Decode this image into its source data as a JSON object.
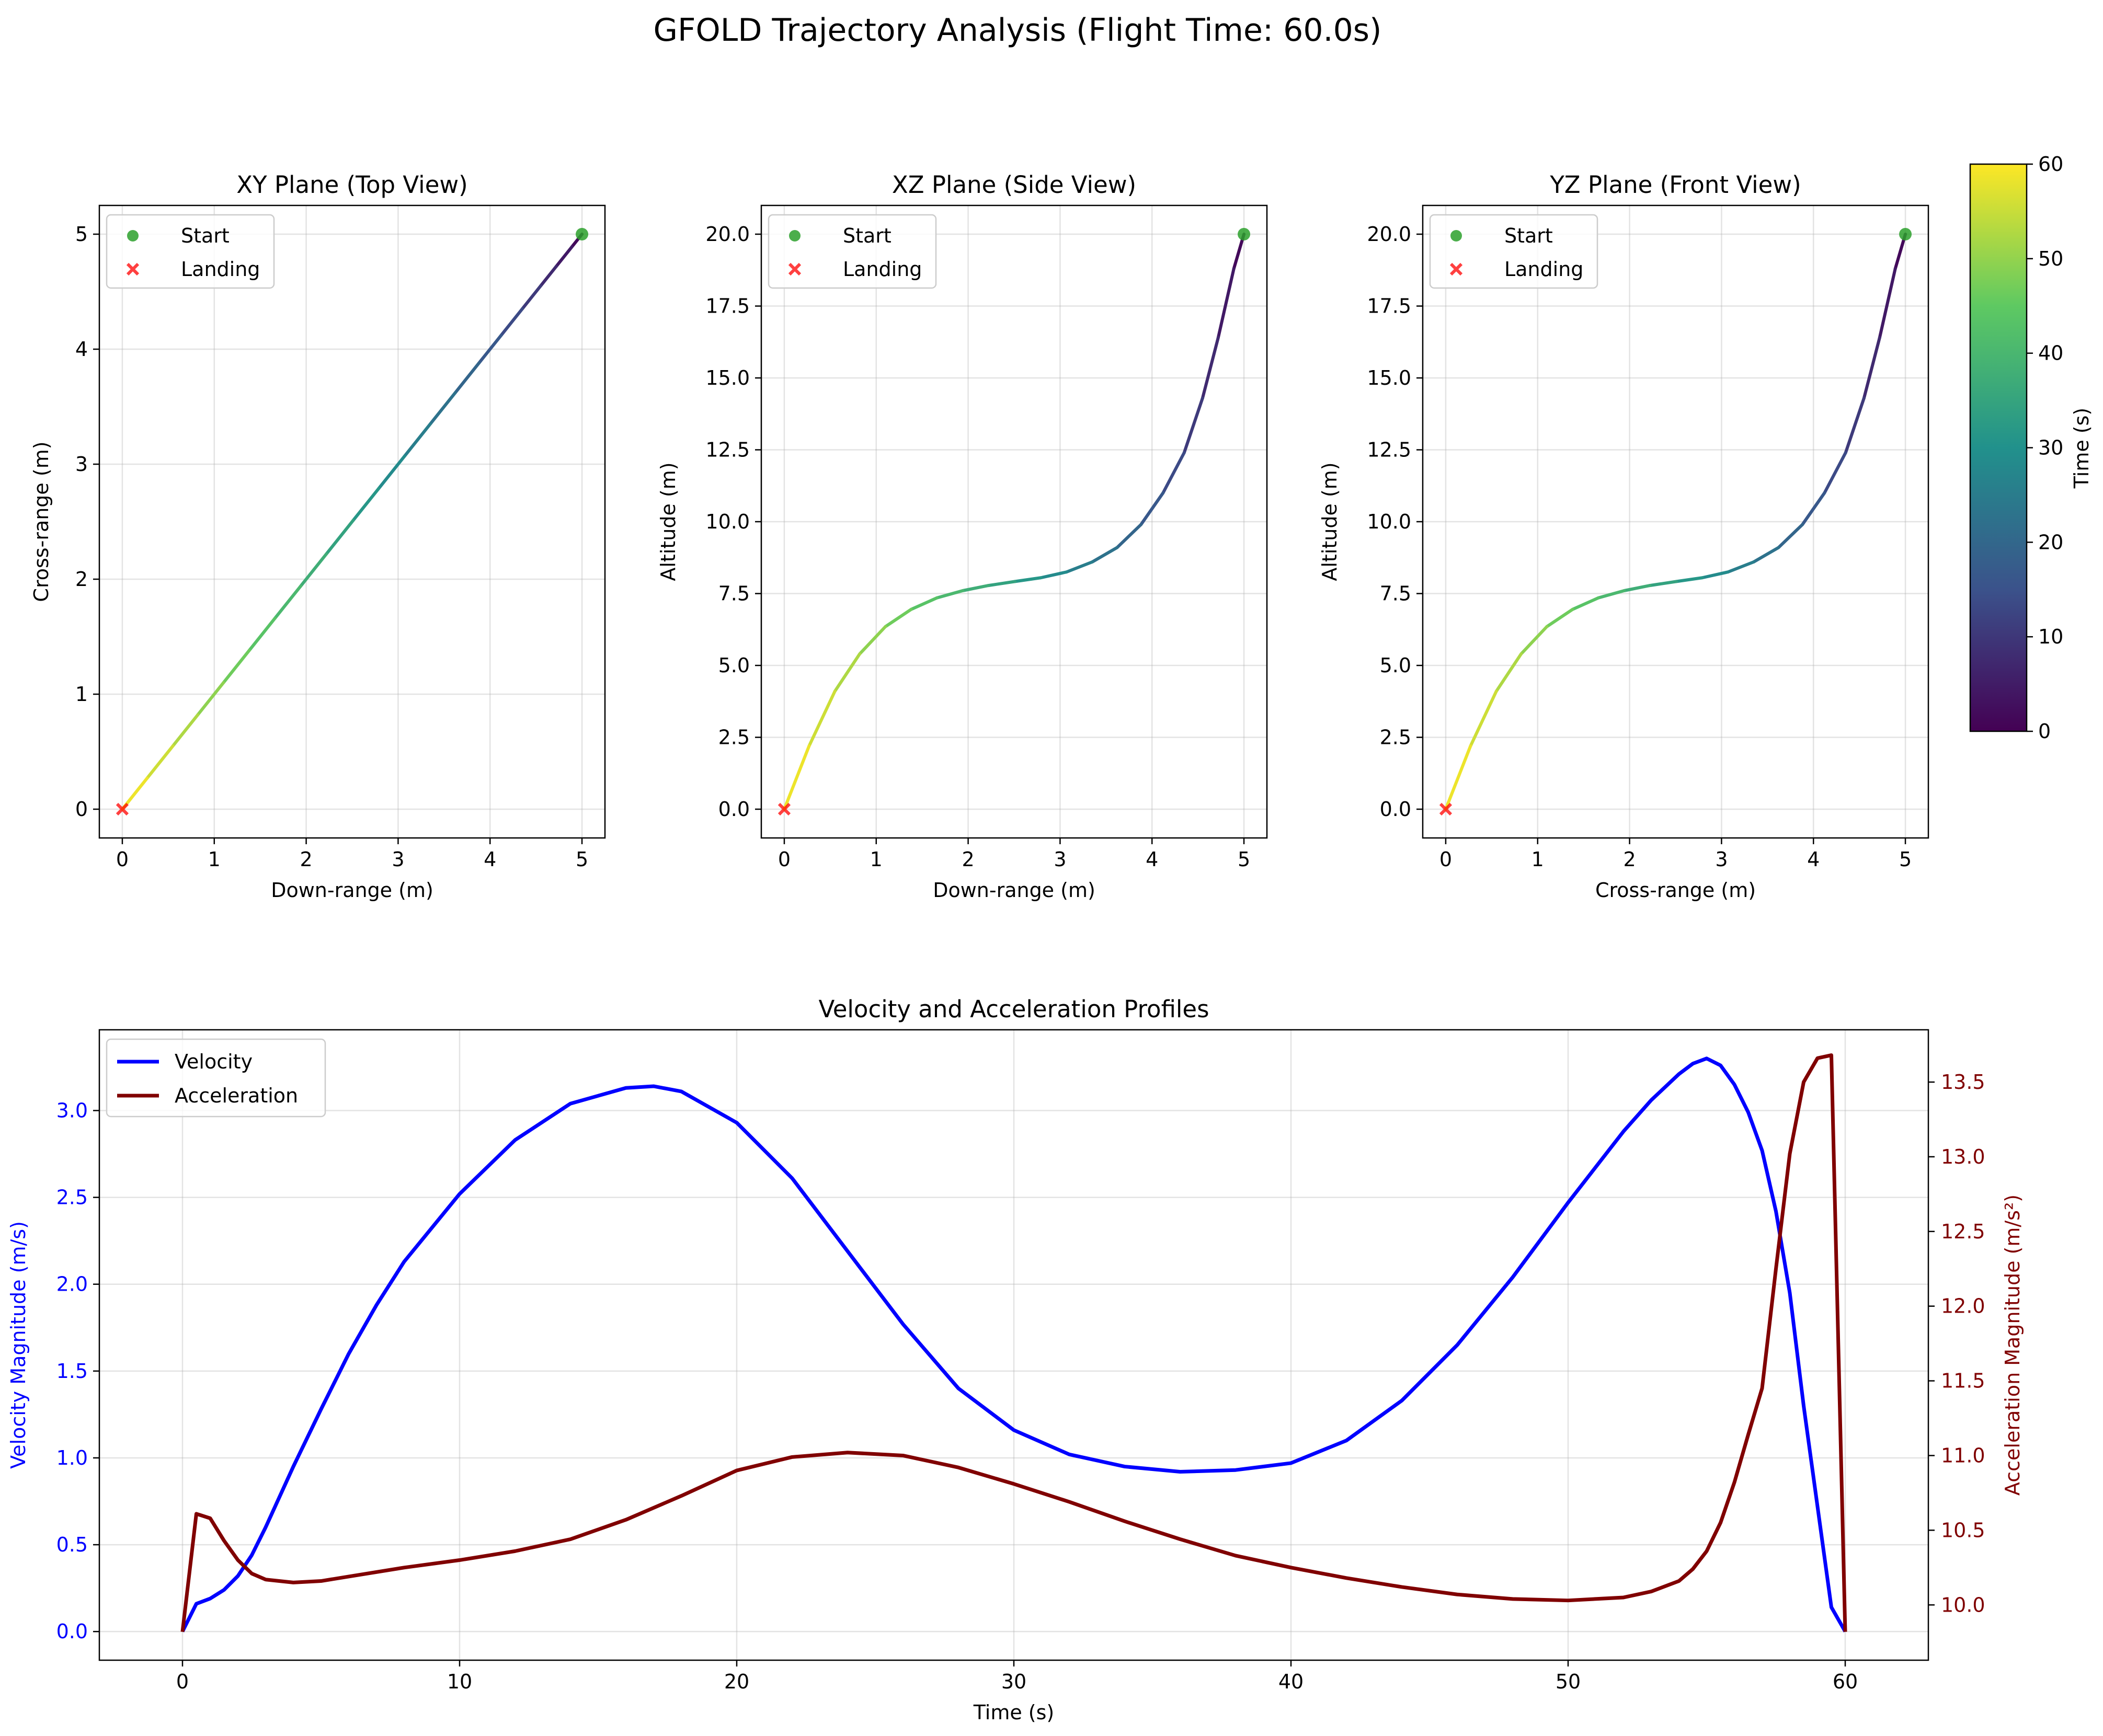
{
  "figure": {
    "suptitle": "GFOLD Trajectory Analysis (Flight Time: 60.0s)"
  },
  "colors": {
    "start": "#2ca02c",
    "landing": "#ff0000",
    "velocity": "#0000ff",
    "acceleration": "#800000",
    "grid": "#b0b0b0",
    "colormap": [
      "#440154",
      "#3b528b",
      "#21918c",
      "#5ec962",
      "#fde725"
    ]
  },
  "chart_data": [
    {
      "type": "line",
      "title": "XY Plane (Top View)",
      "xlabel": "Down-range (m)",
      "ylabel": "Cross-range (m)",
      "xlim": [
        -0.25,
        5.25
      ],
      "ylim": [
        -0.25,
        5.25
      ],
      "xticks": [
        0,
        1,
        2,
        3,
        4,
        5
      ],
      "yticks": [
        0,
        1,
        2,
        3,
        4,
        5
      ],
      "grid": true,
      "color_by": "time",
      "legend": {
        "position": "top-left",
        "entries": [
          "Start",
          "Landing"
        ]
      },
      "series": [
        {
          "t": [
            0,
            3,
            6,
            9,
            12,
            15,
            18,
            21,
            24,
            27,
            30,
            33,
            36,
            39,
            42,
            45,
            48,
            51,
            54,
            57,
            60
          ],
          "x": [
            5.0,
            4.89,
            4.72,
            4.55,
            4.35,
            4.12,
            3.88,
            3.62,
            3.35,
            3.07,
            2.79,
            2.51,
            2.22,
            1.94,
            1.66,
            1.38,
            1.1,
            0.82,
            0.55,
            0.27,
            0.0
          ],
          "y": [
            5.0,
            4.89,
            4.72,
            4.55,
            4.35,
            4.12,
            3.88,
            3.62,
            3.35,
            3.07,
            2.79,
            2.51,
            2.22,
            1.94,
            1.66,
            1.38,
            1.1,
            0.82,
            0.55,
            0.27,
            0.0
          ]
        }
      ],
      "markers": {
        "start": [
          5,
          5
        ],
        "landing": [
          0,
          0
        ]
      }
    },
    {
      "type": "line",
      "title": "XZ Plane (Side View)",
      "xlabel": "Down-range (m)",
      "ylabel": "Altitude (m)",
      "xlim": [
        -0.25,
        5.25
      ],
      "ylim": [
        -1.0,
        21.0
      ],
      "xticks": [
        0,
        1,
        2,
        3,
        4,
        5
      ],
      "yticks": [
        0.0,
        2.5,
        5.0,
        7.5,
        10.0,
        12.5,
        15.0,
        17.5,
        20.0
      ],
      "grid": true,
      "color_by": "time",
      "legend": {
        "position": "top-left",
        "entries": [
          "Start",
          "Landing"
        ]
      },
      "series": [
        {
          "t": [
            0,
            3,
            6,
            9,
            12,
            15,
            18,
            21,
            24,
            27,
            30,
            33,
            36,
            39,
            42,
            45,
            48,
            51,
            54,
            57,
            60
          ],
          "x": [
            5.0,
            4.89,
            4.72,
            4.55,
            4.35,
            4.12,
            3.88,
            3.62,
            3.35,
            3.07,
            2.79,
            2.51,
            2.22,
            1.94,
            1.66,
            1.38,
            1.1,
            0.82,
            0.55,
            0.27,
            0.0
          ],
          "y": [
            20.0,
            18.8,
            16.4,
            14.3,
            12.4,
            11.0,
            9.9,
            9.1,
            8.6,
            8.25,
            8.05,
            7.92,
            7.78,
            7.6,
            7.35,
            6.95,
            6.35,
            5.4,
            4.1,
            2.2,
            0.0
          ]
        }
      ],
      "markers": {
        "start": [
          5,
          20
        ],
        "landing": [
          0,
          0
        ]
      }
    },
    {
      "type": "line",
      "title": "YZ Plane (Front View)",
      "xlabel": "Cross-range (m)",
      "ylabel": "Altitude (m)",
      "xlim": [
        -0.25,
        5.25
      ],
      "ylim": [
        -1.0,
        21.0
      ],
      "xticks": [
        0,
        1,
        2,
        3,
        4,
        5
      ],
      "yticks": [
        0.0,
        2.5,
        5.0,
        7.5,
        10.0,
        12.5,
        15.0,
        17.5,
        20.0
      ],
      "grid": true,
      "color_by": "time",
      "legend": {
        "position": "top-left",
        "entries": [
          "Start",
          "Landing"
        ]
      },
      "series": [
        {
          "t": [
            0,
            3,
            6,
            9,
            12,
            15,
            18,
            21,
            24,
            27,
            30,
            33,
            36,
            39,
            42,
            45,
            48,
            51,
            54,
            57,
            60
          ],
          "x": [
            5.0,
            4.89,
            4.72,
            4.55,
            4.35,
            4.12,
            3.88,
            3.62,
            3.35,
            3.07,
            2.79,
            2.51,
            2.22,
            1.94,
            1.66,
            1.38,
            1.1,
            0.82,
            0.55,
            0.27,
            0.0
          ],
          "y": [
            20.0,
            18.8,
            16.4,
            14.3,
            12.4,
            11.0,
            9.9,
            9.1,
            8.6,
            8.25,
            8.05,
            7.92,
            7.78,
            7.6,
            7.35,
            6.95,
            6.35,
            5.4,
            4.1,
            2.2,
            0.0
          ]
        }
      ],
      "markers": {
        "start": [
          5,
          20
        ],
        "landing": [
          0,
          0
        ]
      }
    },
    {
      "type": "line",
      "title": "Velocity and Acceleration Profiles",
      "xlabel": "Time (s)",
      "ylabel": "Velocity Magnitude (m/s)",
      "y2label": "Acceleration Magnitude (m/s²)",
      "xlim": [
        -3,
        63
      ],
      "ylim": [
        -0.165,
        3.465
      ],
      "y2lim": [
        9.63,
        13.85
      ],
      "xticks": [
        0,
        10,
        20,
        30,
        40,
        50,
        60
      ],
      "yticks": [
        0.0,
        0.5,
        1.0,
        1.5,
        2.0,
        2.5,
        3.0
      ],
      "y2ticks": [
        10.0,
        10.5,
        11.0,
        11.5,
        12.0,
        12.5,
        13.0,
        13.5
      ],
      "grid": true,
      "legend": {
        "position": "top-left"
      },
      "series": [
        {
          "name": "Velocity",
          "axis": "left",
          "x": [
            0,
            0.5,
            1,
            1.5,
            2,
            2.5,
            3,
            4,
            5,
            6,
            7,
            8,
            10,
            12,
            14,
            16,
            17,
            18,
            20,
            22,
            24,
            26,
            28,
            30,
            32,
            34,
            36,
            38,
            40,
            42,
            44,
            46,
            48,
            50,
            52,
            53,
            54,
            54.5,
            55,
            55.5,
            56,
            56.5,
            57,
            57.5,
            58,
            58.5,
            59,
            59.5,
            60
          ],
          "values": [
            0.0,
            0.16,
            0.19,
            0.24,
            0.32,
            0.44,
            0.6,
            0.95,
            1.28,
            1.6,
            1.88,
            2.13,
            2.52,
            2.83,
            3.04,
            3.13,
            3.14,
            3.11,
            2.93,
            2.61,
            2.19,
            1.77,
            1.4,
            1.16,
            1.02,
            0.95,
            0.92,
            0.93,
            0.97,
            1.1,
            1.33,
            1.65,
            2.04,
            2.47,
            2.88,
            3.06,
            3.21,
            3.27,
            3.3,
            3.26,
            3.15,
            2.99,
            2.77,
            2.42,
            1.95,
            1.3,
            0.72,
            0.14,
            0.0
          ]
        },
        {
          "name": "Acceleration",
          "axis": "right",
          "x": [
            0,
            0.5,
            1,
            1.5,
            2,
            2.5,
            3,
            4,
            5,
            6,
            8,
            10,
            12,
            14,
            16,
            18,
            20,
            22,
            24,
            26,
            28,
            30,
            32,
            34,
            36,
            38,
            40,
            42,
            44,
            46,
            48,
            50,
            52,
            53,
            54,
            54.5,
            55,
            55.5,
            56,
            56.5,
            57,
            57.5,
            58,
            58.5,
            59,
            59.5,
            60
          ],
          "values": [
            9.82,
            10.61,
            10.58,
            10.43,
            10.3,
            10.21,
            10.17,
            10.15,
            10.16,
            10.19,
            10.25,
            10.3,
            10.36,
            10.44,
            10.57,
            10.73,
            10.9,
            10.99,
            11.02,
            11.0,
            10.92,
            10.81,
            10.69,
            10.56,
            10.44,
            10.33,
            10.25,
            10.18,
            10.12,
            10.07,
            10.04,
            10.03,
            10.05,
            10.09,
            10.16,
            10.24,
            10.36,
            10.55,
            10.82,
            11.14,
            11.45,
            12.25,
            13.02,
            13.5,
            13.66,
            13.68,
            9.82
          ]
        }
      ]
    }
  ],
  "colorbar": {
    "label": "Time (s)",
    "range": [
      0,
      60
    ],
    "ticks": [
      0,
      10,
      20,
      30,
      40,
      50,
      60
    ]
  }
}
